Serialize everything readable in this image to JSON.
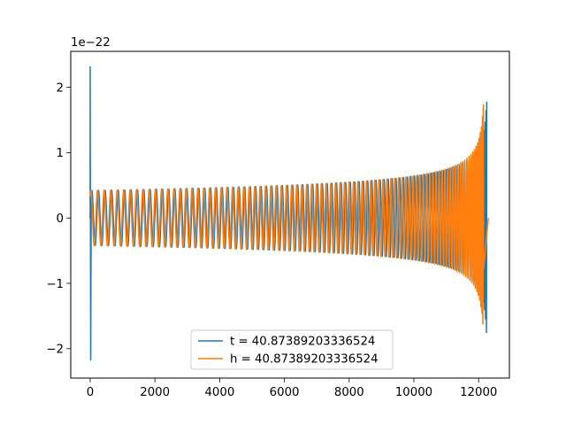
{
  "chart_data": {
    "type": "line",
    "title": "",
    "xlabel": "",
    "ylabel": "",
    "y_offset_text": "1e−22",
    "xlim": [
      -600,
      12950
    ],
    "ylim": [
      -2.45,
      2.55
    ],
    "x_ticks": [
      {
        "value": 0,
        "label": "0"
      },
      {
        "value": 2000,
        "label": "2000"
      },
      {
        "value": 4000,
        "label": "4000"
      },
      {
        "value": 6000,
        "label": "6000"
      },
      {
        "value": 8000,
        "label": "8000"
      },
      {
        "value": 10000,
        "label": "10000"
      },
      {
        "value": 12000,
        "label": "12000"
      }
    ],
    "y_ticks": [
      {
        "value": -2,
        "label": "−2"
      },
      {
        "value": -1,
        "label": "−1"
      },
      {
        "value": 0,
        "label": "0"
      },
      {
        "value": 1,
        "label": "1"
      },
      {
        "value": 2,
        "label": "2"
      }
    ],
    "grid": false,
    "legend_placement": "lower center",
    "series": [
      {
        "name": "t = 40.87389203336524",
        "color": "#1f77b4",
        "values_scale": "1e-22",
        "signal": {
          "start_x": 0,
          "merger_x": 12250,
          "end_x": 12250,
          "initial_amplitude": 0.42,
          "peak_amplitude": 2.3,
          "spike_at_start": {
            "x": 0,
            "min": -2.18,
            "max": 2.32
          },
          "tail_after_merger": 0
        }
      },
      {
        "name": "h = 40.87389203336524",
        "color": "#ff7f0e",
        "values_scale": "1e-22",
        "signal": {
          "start_x": 0,
          "merger_x": 12150,
          "end_x": 12300,
          "initial_amplitude": 0.42,
          "peak_amplitude": 2.3,
          "spike_at_start": null,
          "tail_after_merger": 0
        }
      }
    ]
  }
}
